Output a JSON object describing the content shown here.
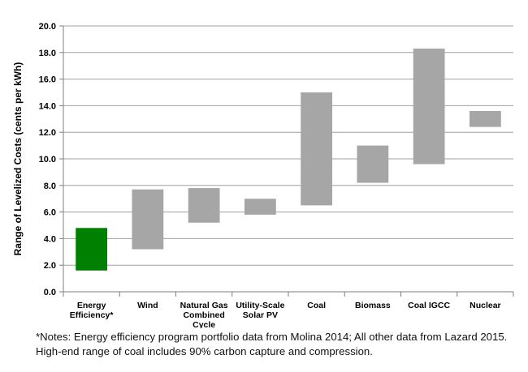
{
  "chart_data": {
    "type": "bar",
    "subtype": "floating-range",
    "ylabel": "Range of Levelized Costs (cents per kWh)",
    "xlabel": "",
    "ylim": [
      0,
      20
    ],
    "yticks": [
      "0.0",
      "2.0",
      "4.0",
      "6.0",
      "8.0",
      "10.0",
      "12.0",
      "14.0",
      "16.0",
      "18.0",
      "20.0"
    ],
    "grid": true,
    "categories": [
      [
        "Energy",
        "Efficiency*"
      ],
      [
        "Wind"
      ],
      [
        "Natural Gas",
        "Combined",
        "Cycle"
      ],
      [
        "Utility-Scale",
        "Solar PV"
      ],
      [
        "Coal"
      ],
      [
        "Biomass"
      ],
      [
        "Coal IGCC"
      ],
      [
        "Nuclear"
      ]
    ],
    "ranges": [
      {
        "low": 1.6,
        "high": 4.8,
        "color": "#008000"
      },
      {
        "low": 3.2,
        "high": 7.7,
        "color": "#a6a6a6"
      },
      {
        "low": 5.2,
        "high": 7.8,
        "color": "#a6a6a6"
      },
      {
        "low": 5.8,
        "high": 7.0,
        "color": "#a6a6a6"
      },
      {
        "low": 6.5,
        "high": 15.0,
        "color": "#a6a6a6"
      },
      {
        "low": 8.2,
        "high": 11.0,
        "color": "#a6a6a6"
      },
      {
        "low": 9.6,
        "high": 18.3,
        "color": "#a6a6a6"
      },
      {
        "low": 12.4,
        "high": 13.6,
        "color": "#a6a6a6"
      }
    ],
    "colors": {
      "highlight": "#008000",
      "default": "#a6a6a6",
      "grid": "#a0a0a0"
    }
  },
  "notes": {
    "line1": "*Notes: Energy efficiency program portfolio data from Molina 2014; All other data from Lazard 2015.",
    "line2": "High-end range of coal includes 90% carbon capture and compression."
  }
}
